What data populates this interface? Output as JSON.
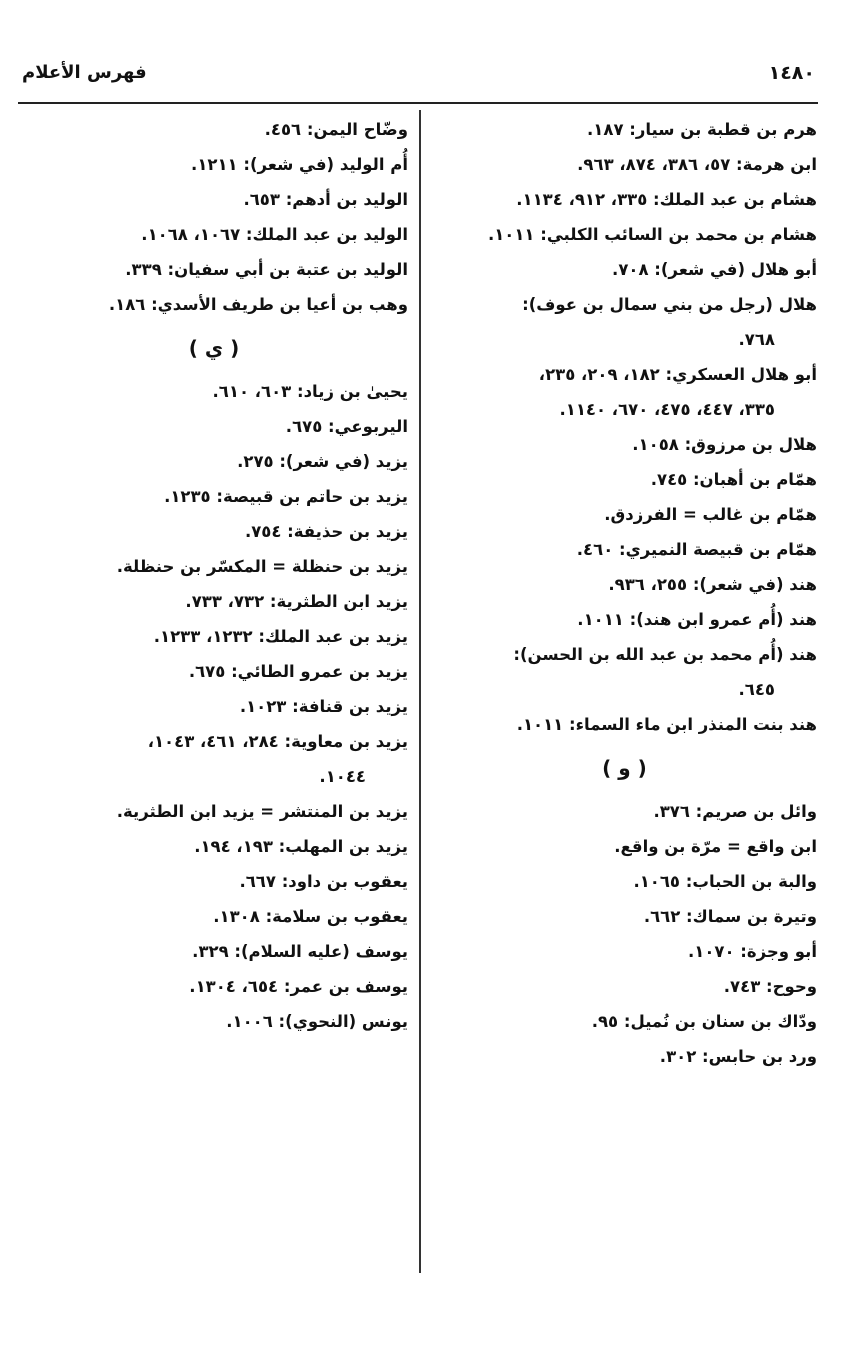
{
  "header": {
    "page_number": "١٤٨٠",
    "running_title": "فهرس الأعلام"
  },
  "columns": {
    "right": [
      {
        "type": "entry",
        "text": "هرم بن قطبة بن سيار: ١٨٧."
      },
      {
        "type": "entry",
        "text": "ابن هرمة: ٥٧، ٣٨٦، ٨٧٤، ٩٦٣."
      },
      {
        "type": "entry",
        "text": "هشام بن عبد الملك: ٣٣٥، ٩١٢، ١١٣٤."
      },
      {
        "type": "entry",
        "text": "هشام بن محمد بن السائب الكلبي: ١٠١١."
      },
      {
        "type": "entry",
        "text": "أبو هلال (في شعر): ٧٠٨."
      },
      {
        "type": "entry",
        "text": "هلال (رجل من بني سمال بن عوف):"
      },
      {
        "type": "cont",
        "text": "٧٦٨."
      },
      {
        "type": "entry",
        "text": "أبو هلال العسكري: ١٨٢، ٢٠٩، ٢٣٥،"
      },
      {
        "type": "cont",
        "text": "٣٣٥، ٤٤٧، ٤٧٥، ٦٧٠، ١١٤٠."
      },
      {
        "type": "entry",
        "text": "هلال بن مرزوق: ١٠٥٨."
      },
      {
        "type": "entry",
        "text": "همّام بن أهبان: ٧٤٥."
      },
      {
        "type": "entry",
        "text": "همّام بن غالب = الفرزدق."
      },
      {
        "type": "entry",
        "text": "همّام بن قبيصة النميري: ٤٦٠."
      },
      {
        "type": "entry",
        "text": "هند (في شعر): ٢٥٥، ٩٣٦."
      },
      {
        "type": "entry",
        "text": "هند (أُم عمرو ابن هند): ١٠١١."
      },
      {
        "type": "entry",
        "text": "هند (أُم محمد بن عبد الله بن الحسن):"
      },
      {
        "type": "cont",
        "text": "٦٤٥."
      },
      {
        "type": "entry",
        "text": "هند بنت المنذر ابن ماء السماء: ١٠١١."
      },
      {
        "type": "heading",
        "text": "( و )"
      },
      {
        "type": "entry",
        "text": "وائل بن صريم: ٣٧٦."
      },
      {
        "type": "entry",
        "text": "ابن واقع = مرّة بن واقع."
      },
      {
        "type": "entry",
        "text": "والبة بن الحباب: ١٠٦٥."
      },
      {
        "type": "entry",
        "text": "وتيرة بن سماك: ٦٦٢."
      },
      {
        "type": "entry",
        "text": "أبو وجزة: ١٠٧٠."
      },
      {
        "type": "entry",
        "text": "وحوح: ٧٤٣."
      },
      {
        "type": "entry",
        "text": "ودّاك بن سنان بن نُميل: ٩٥."
      },
      {
        "type": "entry",
        "text": "ورد بن حابس: ٣٠٢."
      }
    ],
    "left": [
      {
        "type": "entry",
        "text": "وضّاح اليمن: ٤٥٦."
      },
      {
        "type": "entry",
        "text": "أُم الوليد (في شعر): ١٢١١."
      },
      {
        "type": "entry",
        "text": "الوليد بن أدهم: ٦٥٣."
      },
      {
        "type": "entry",
        "text": "الوليد بن عبد الملك: ١٠٦٧، ١٠٦٨."
      },
      {
        "type": "entry",
        "text": "الوليد بن عتبة بن أبي سفيان: ٣٣٩."
      },
      {
        "type": "entry",
        "text": "وهب بن أعيا بن طريف الأسدي: ١٨٦."
      },
      {
        "type": "heading",
        "text": "( ي )"
      },
      {
        "type": "entry",
        "text": "يحيىٰ بن زياد: ٦٠٣، ٦١٠."
      },
      {
        "type": "entry",
        "text": "اليربوعي: ٦٧٥."
      },
      {
        "type": "entry",
        "text": "يزيد (في شعر): ٢٧٥."
      },
      {
        "type": "entry",
        "text": "يزيد بن حاتم بن قبيصة: ١٢٣٥."
      },
      {
        "type": "entry",
        "text": "يزيد بن حذيفة: ٧٥٤."
      },
      {
        "type": "entry",
        "text": "يزيد بن حنظلة = المكسّر بن حنظلة."
      },
      {
        "type": "entry",
        "text": "يزيد ابن الطثرية: ٧٣٢، ٧٣٣."
      },
      {
        "type": "entry",
        "text": "يزيد بن عبد الملك: ١٢٣٢، ١٢٣٣."
      },
      {
        "type": "entry",
        "text": "يزيد بن عمرو الطائي: ٦٧٥."
      },
      {
        "type": "entry",
        "text": "يزيد بن قنافة: ١٠٢٣."
      },
      {
        "type": "entry",
        "text": "يزيد بن معاوية: ٢٨٤، ٤٦١، ١٠٤٣،"
      },
      {
        "type": "cont",
        "text": "١٠٤٤."
      },
      {
        "type": "entry",
        "text": "يزيد بن المنتشر = يزيد ابن الطثرية."
      },
      {
        "type": "entry",
        "text": "يزيد بن المهلب: ١٩٣، ١٩٤."
      },
      {
        "type": "entry",
        "text": "يعقوب بن داود: ٦٦٧."
      },
      {
        "type": "entry",
        "text": "يعقوب بن سلامة: ١٣٠٨."
      },
      {
        "type": "entry",
        "text": "يوسف (عليه السلام): ٣٢٩."
      },
      {
        "type": "entry",
        "text": "يوسف بن عمر: ٦٥٤، ١٣٠٤."
      },
      {
        "type": "entry",
        "text": "يونس (النحوي): ١٠٠٦."
      }
    ]
  }
}
